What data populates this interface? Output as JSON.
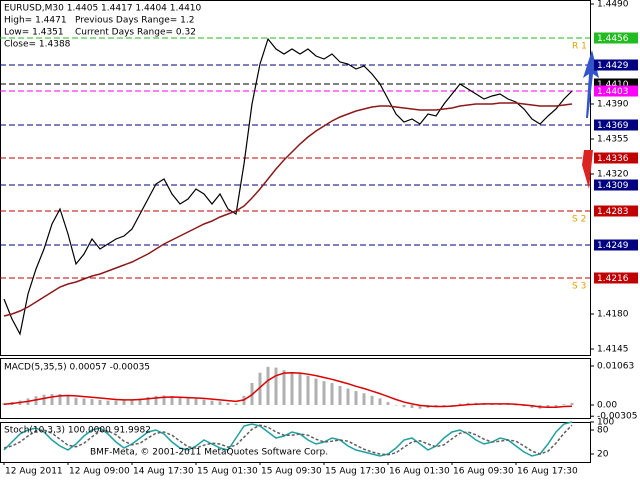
{
  "chart_data": [
    {
      "type": "line",
      "title": "EURUSD,M30  1.4405 1.4417 1.4404 1.4410",
      "info": [
        "High= 1.4471",
        "Previous Days Range= 1.2",
        "Low= 1.4351",
        "Current Days Range= 0.32",
        "Close= 1.4388"
      ],
      "categories": [
        "12 Aug 2011",
        null,
        null,
        null,
        null,
        null,
        null,
        null,
        "12 Aug 09:00",
        null,
        null,
        null,
        null,
        null,
        null,
        null,
        "14 Aug 17:30",
        null,
        null,
        null,
        null,
        null,
        null,
        null,
        "15 Aug 01:30",
        null,
        null,
        null,
        null,
        null,
        null,
        null,
        "15 Aug 09:30",
        null,
        null,
        null,
        null,
        null,
        null,
        null,
        "15 Aug 17:30",
        null,
        null,
        null,
        null,
        null,
        null,
        null,
        "16 Aug 01:30",
        null,
        null,
        null,
        null,
        null,
        null,
        null,
        "16 Aug 09:30",
        null,
        null,
        null,
        null,
        null,
        null,
        null,
        "16 Aug 17:30",
        null,
        null,
        null,
        null,
        null,
        null,
        null
      ],
      "series": [
        {
          "color": "#000000",
          "values": [
            1.4195,
            1.4175,
            1.416,
            1.42,
            1.4225,
            1.4245,
            1.427,
            1.4285,
            1.426,
            1.423,
            1.424,
            1.4255,
            1.4245,
            1.425,
            1.4255,
            1.4258,
            1.4265,
            1.428,
            1.4295,
            1.431,
            1.4315,
            1.43,
            1.429,
            1.4295,
            1.4305,
            1.43,
            1.429,
            1.43,
            1.4285,
            1.428,
            1.433,
            1.439,
            1.443,
            1.4455,
            1.4445,
            1.444,
            1.4445,
            1.444,
            1.4445,
            1.4438,
            1.4435,
            1.444,
            1.4432,
            1.443,
            1.4425,
            1.4428,
            1.442,
            1.441,
            1.4395,
            1.438,
            1.4372,
            1.4375,
            1.437,
            1.438,
            1.4378,
            1.439,
            1.44,
            1.441,
            1.4405,
            1.44,
            1.4395,
            1.4398,
            1.44,
            1.4395,
            1.4392,
            1.4385,
            1.4375,
            1.437,
            1.4378,
            1.4385,
            1.4395,
            1.4403
          ]
        },
        {
          "color": "#8b1a1a",
          "values": [
            1.4178,
            1.418,
            1.4183,
            1.4187,
            1.4192,
            1.4197,
            1.4202,
            1.4207,
            1.421,
            1.4212,
            1.4215,
            1.4218,
            1.422,
            1.4223,
            1.4226,
            1.4229,
            1.4232,
            1.4236,
            1.424,
            1.4245,
            1.425,
            1.4254,
            1.4258,
            1.4262,
            1.4266,
            1.427,
            1.4273,
            1.4277,
            1.428,
            1.4283,
            1.4288,
            1.4296,
            1.4305,
            1.4315,
            1.4325,
            1.4334,
            1.4342,
            1.435,
            1.4357,
            1.4363,
            1.4368,
            1.4373,
            1.4377,
            1.438,
            1.4383,
            1.4385,
            1.4387,
            1.4388,
            1.4388,
            1.4387,
            1.4386,
            1.4385,
            1.4384,
            1.4384,
            1.4384,
            1.4385,
            1.4386,
            1.4388,
            1.4389,
            1.439,
            1.439,
            1.439,
            1.4391,
            1.4391,
            1.4391,
            1.439,
            1.4389,
            1.4388,
            1.4388,
            1.4388,
            1.4389,
            1.439
          ]
        }
      ],
      "ylim": [
        1.4139,
        1.4494
      ],
      "yticks": [
        {
          "value": 1.449,
          "label": "1.4490"
        },
        {
          "value": 1.439,
          "label": "1.4390"
        },
        1.4355,
        {
          "value": 1.432,
          "label": "1.4320"
        },
        {
          "value": 1.418,
          "label": "1.4180"
        },
        1.4145
      ],
      "levels": [
        {
          "value": 1.4456,
          "color": "#22bb22",
          "name": "R 1"
        },
        {
          "value": 1.4429,
          "color": "#000080"
        },
        {
          "value": 1.441,
          "label": "1.4410",
          "color": "#000000"
        },
        {
          "value": 1.4403,
          "color": "#ff00ff"
        },
        {
          "value": 1.4369,
          "color": "#000080"
        },
        {
          "value": 1.4336,
          "color": "#c00000"
        },
        {
          "value": 1.4309,
          "color": "#000080"
        },
        {
          "value": 1.4283,
          "color": "#c00000",
          "name": "S 2"
        },
        {
          "value": 1.4249,
          "color": "#000080"
        },
        {
          "value": 1.4216,
          "color": "#c00000",
          "name": "S 3"
        }
      ]
    },
    {
      "type": "bar",
      "title": "MACD(5,35,5) 0.00057 -0.00035",
      "series": [
        {
          "color": "#b0b0b0",
          "values": [
            0.0005,
            0.0008,
            0.0012,
            0.0018,
            0.0024,
            0.0028,
            0.003,
            0.003,
            0.0026,
            0.002,
            0.0018,
            0.0016,
            0.0014,
            0.0012,
            0.0012,
            0.0013,
            0.0015,
            0.0018,
            0.0022,
            0.0025,
            0.0026,
            0.0024,
            0.002,
            0.0018,
            0.0017,
            0.0015,
            0.0012,
            0.001,
            0.0006,
            0.0004,
            0.0025,
            0.006,
            0.0088,
            0.0104,
            0.0102,
            0.0095,
            0.009,
            0.0085,
            0.008,
            0.0072,
            0.0065,
            0.006,
            0.0052,
            0.0045,
            0.0038,
            0.0032,
            0.0025,
            0.0018,
            0.0008,
            0,
            -0.0006,
            -0.0008,
            -0.001,
            -0.0008,
            -0.0006,
            -0.0003,
            0,
            0.0004,
            0.0006,
            0.0006,
            0.0005,
            0.0004,
            0.0004,
            0.0002,
            0,
            -0.0003,
            -0.0008,
            -0.001,
            -0.0008,
            -0.0004,
            0.0002,
            0.00057
          ]
        },
        {
          "color": "#dd0000",
          "type": "line",
          "values": [
            0.0002,
            0.0004,
            0.0007,
            0.001,
            0.0014,
            0.0018,
            0.0022,
            0.0025,
            0.0026,
            0.0025,
            0.0023,
            0.0021,
            0.0019,
            0.0017,
            0.0015,
            0.0014,
            0.0014,
            0.0015,
            0.0017,
            0.0019,
            0.0021,
            0.0022,
            0.0021,
            0.002,
            0.0019,
            0.0018,
            0.0016,
            0.0014,
            0.0012,
            0.001,
            0.0014,
            0.0028,
            0.0048,
            0.0067,
            0.008,
            0.0087,
            0.0088,
            0.0087,
            0.0084,
            0.008,
            0.0075,
            0.007,
            0.0064,
            0.0058,
            0.0051,
            0.0045,
            0.0038,
            0.0031,
            0.0023,
            0.0015,
            0.0008,
            0.0003,
            -0.0001,
            -0.0003,
            -0.0004,
            -0.0004,
            -0.0003,
            -0.0001,
            0.0001,
            0.0002,
            0.0003,
            0.0003,
            0.0003,
            0.0003,
            0.0002,
            0,
            -0.0002,
            -0.0005,
            -0.0006,
            -0.0006,
            -0.0004,
            -0.00035
          ]
        }
      ],
      "ylim": [
        -0.00354,
        0.01281
      ],
      "yticks": [
        0.01063,
        {
          "value": 0,
          "label": "0.00"
        },
        -0.00305
      ]
    },
    {
      "type": "line",
      "title": "Stoch(10,3,3) 100.0000 91.9982",
      "series": [
        {
          "color": "#20a0a0",
          "values": [
            30,
            50,
            70,
            80,
            85,
            75,
            55,
            40,
            30,
            45,
            65,
            80,
            85,
            70,
            50,
            35,
            45,
            60,
            75,
            80,
            70,
            50,
            35,
            30,
            40,
            55,
            45,
            35,
            30,
            60,
            90,
            95,
            90,
            75,
            60,
            65,
            75,
            70,
            55,
            45,
            50,
            60,
            55,
            40,
            30,
            25,
            20,
            15,
            20,
            35,
            55,
            60,
            45,
            30,
            40,
            60,
            75,
            80,
            70,
            55,
            45,
            50,
            60,
            55,
            40,
            25,
            15,
            20,
            45,
            75,
            95,
            100
          ]
        },
        {
          "color": "#606060",
          "dash": true,
          "values": [
            35,
            40,
            50,
            65,
            78,
            80,
            72,
            57,
            42,
            38,
            47,
            63,
            77,
            78,
            68,
            52,
            43,
            47,
            60,
            72,
            75,
            67,
            52,
            38,
            35,
            42,
            47,
            45,
            37,
            42,
            62,
            82,
            92,
            87,
            75,
            67,
            67,
            70,
            67,
            57,
            50,
            52,
            55,
            52,
            42,
            32,
            25,
            20,
            18,
            23,
            37,
            50,
            53,
            45,
            38,
            43,
            58,
            72,
            75,
            68,
            57,
            50,
            52,
            55,
            52,
            40,
            27,
            20,
            27,
            47,
            72,
            92
          ]
        }
      ],
      "ylim": [
        0,
        100
      ],
      "yticks": [
        100,
        80,
        20
      ]
    }
  ],
  "footer": "BMF-Meta, © 2001-2011 MetaQuotes Software Corp."
}
